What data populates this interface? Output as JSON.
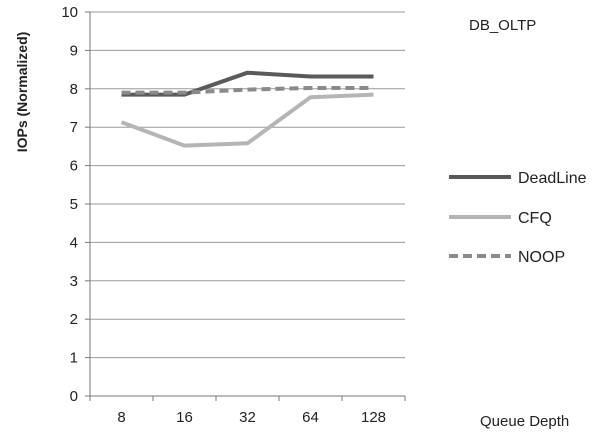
{
  "chart_data": {
    "type": "line",
    "title": "DB_OLTP",
    "xlabel": "Queue Depth",
    "ylabel": "IOPs (Normalized)",
    "categories": [
      "8",
      "16",
      "32",
      "64",
      "128"
    ],
    "ylim": [
      0,
      10
    ],
    "yticks": [
      0,
      1,
      2,
      3,
      4,
      5,
      6,
      7,
      8,
      9,
      10
    ],
    "grid": true,
    "legend_position": "right",
    "series": [
      {
        "name": "DeadLine",
        "values": [
          7.85,
          7.85,
          8.42,
          8.32,
          8.32
        ],
        "color": "#5a5a5a",
        "style": "solid"
      },
      {
        "name": "CFQ",
        "values": [
          7.13,
          6.52,
          6.58,
          7.78,
          7.85
        ],
        "color": "#b5b5b5",
        "style": "solid"
      },
      {
        "name": "NOOP",
        "values": [
          7.9,
          7.9,
          7.98,
          8.02,
          8.02
        ],
        "color": "#8a8a8a",
        "style": "dashed"
      }
    ]
  }
}
